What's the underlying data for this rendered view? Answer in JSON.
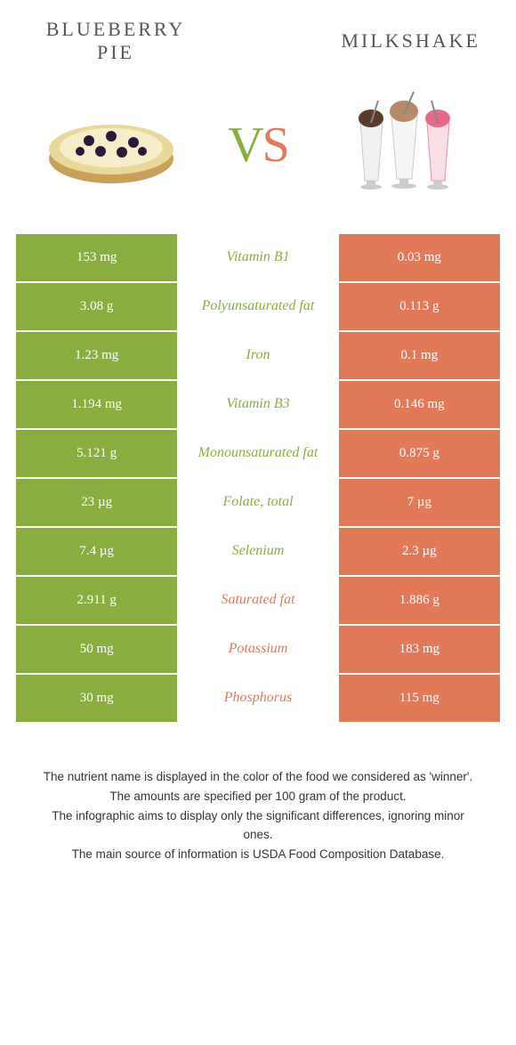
{
  "header": {
    "left_title_line1": "Blueberry",
    "left_title_line2": "pie",
    "right_title": "Milkshake"
  },
  "vs": {
    "v": "V",
    "s": "S"
  },
  "colors": {
    "green": "#8aad3f",
    "orange": "#e27a5a"
  },
  "rows": [
    {
      "left": "153 mg",
      "mid": "Vitamin B1",
      "winner": "green",
      "right": "0.03 mg"
    },
    {
      "left": "3.08 g",
      "mid": "Polyunsaturated fat",
      "winner": "green",
      "right": "0.113 g"
    },
    {
      "left": "1.23 mg",
      "mid": "Iron",
      "winner": "green",
      "right": "0.1 mg"
    },
    {
      "left": "1.194 mg",
      "mid": "Vitamin B3",
      "winner": "green",
      "right": "0.146 mg"
    },
    {
      "left": "5.121 g",
      "mid": "Monounsaturated fat",
      "winner": "green",
      "right": "0.875 g"
    },
    {
      "left": "23 µg",
      "mid": "Folate, total",
      "winner": "green",
      "right": "7 µg"
    },
    {
      "left": "7.4 µg",
      "mid": "Selenium",
      "winner": "green",
      "right": "2.3 µg"
    },
    {
      "left": "2.911 g",
      "mid": "Saturated fat",
      "winner": "orange",
      "right": "1.886 g"
    },
    {
      "left": "50 mg",
      "mid": "Potassium",
      "winner": "orange",
      "right": "183 mg"
    },
    {
      "left": "30 mg",
      "mid": "Phosphorus",
      "winner": "orange",
      "right": "115 mg"
    }
  ],
  "footnotes": [
    "The nutrient name is displayed in the color of the food we considered as 'winner'.",
    "The amounts are specified per 100 gram of the product.",
    "The infographic aims to display only the significant differences, ignoring minor ones.",
    "The main source of information is USDA Food Composition Database."
  ]
}
